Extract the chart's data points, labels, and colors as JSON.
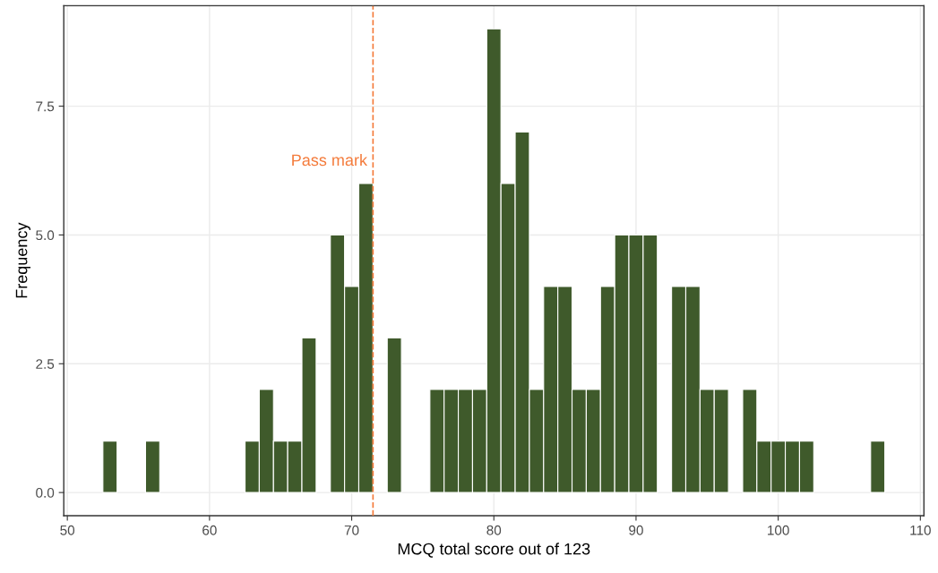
{
  "chart_data": {
    "type": "histogram",
    "xlabel": "MCQ total score out of 123",
    "ylabel": "Frequency",
    "bins": [
      52.5,
      53.5,
      54.5,
      55.5,
      56.5,
      57.5,
      58.5,
      59.5,
      60.5,
      61.5,
      62.5,
      63.5,
      64.5,
      65.5,
      66.5,
      67.5,
      68.5,
      69.5,
      70.5,
      71.5,
      72.5,
      73.5,
      74.5,
      75.5,
      76.5,
      77.5,
      78.5,
      79.5,
      80.5,
      81.5,
      82.5,
      83.5,
      84.5,
      85.5,
      86.5,
      87.5,
      88.5,
      89.5,
      90.5,
      91.5,
      92.5,
      93.5,
      94.5,
      95.5,
      96.5,
      97.5,
      98.5,
      99.5,
      100.5,
      101.5,
      102.5,
      103.5,
      104.5,
      105.5,
      106.5,
      107.5
    ],
    "values": [
      1,
      0,
      0,
      1,
      0,
      0,
      0,
      0,
      0,
      0,
      1,
      2,
      1,
      1,
      3,
      0,
      5,
      4,
      6,
      0,
      3,
      0,
      0,
      2,
      2,
      2,
      2,
      9,
      6,
      7,
      2,
      4,
      4,
      2,
      2,
      4,
      5,
      5,
      5,
      0,
      4,
      4,
      2,
      2,
      0,
      2,
      1,
      1,
      1,
      1,
      0,
      0,
      0,
      0,
      1
    ],
    "color": "#3f5a2b",
    "xlim": [
      49.75,
      110.25
    ],
    "xticks": [
      50,
      60,
      70,
      80,
      90,
      100,
      110
    ],
    "ylim": [
      -0.45,
      9.45
    ],
    "yticks": [
      {
        "value": 0,
        "label": "0.0"
      },
      {
        "value": 2.5,
        "label": "2.5"
      },
      {
        "value": 5,
        "label": "5.0"
      },
      {
        "value": 7.5,
        "label": "7.5"
      }
    ],
    "ref_lines": [
      {
        "axis": "x",
        "value": 71.5,
        "label": "Pass mark",
        "color": "#f47b3b",
        "line_style": "dashed"
      }
    ],
    "grid": true
  }
}
